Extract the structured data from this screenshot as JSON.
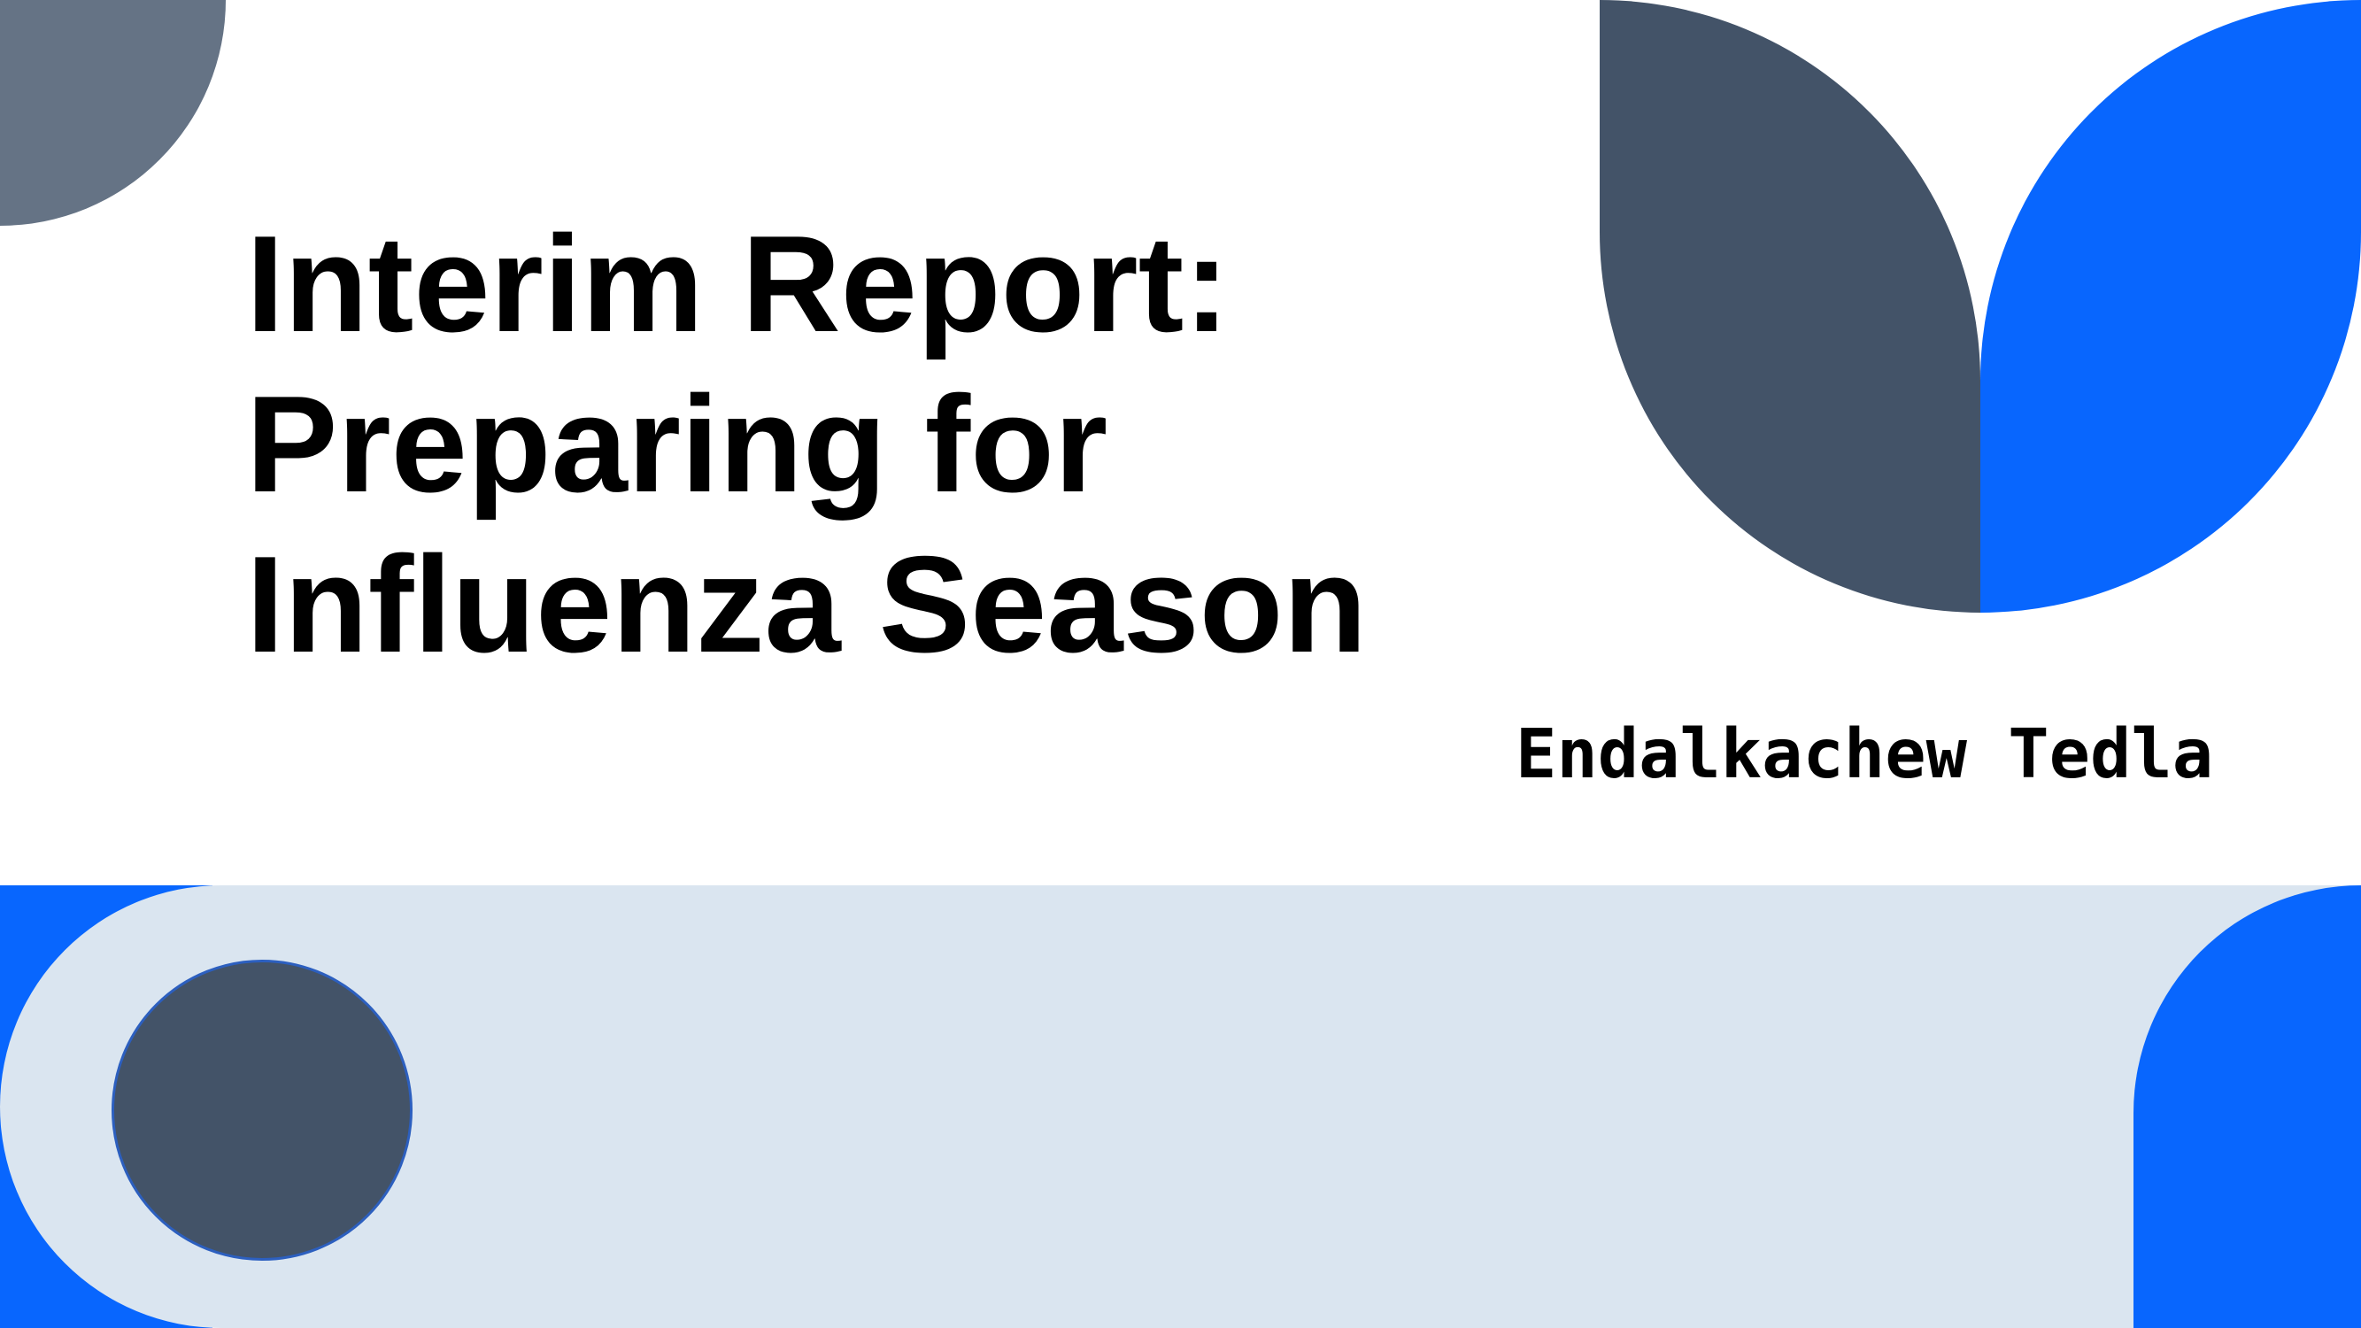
{
  "slide": {
    "title_lines": [
      "Interim Report:",
      "Preparing for",
      "Influenza Season"
    ],
    "author": "Endalkachew Tedla"
  },
  "colors": {
    "background": "#ffffff",
    "slate": "#435368",
    "slate_light": "#657385",
    "blue": "#0866fe",
    "band": "#dae5f0",
    "text": "#000000"
  }
}
